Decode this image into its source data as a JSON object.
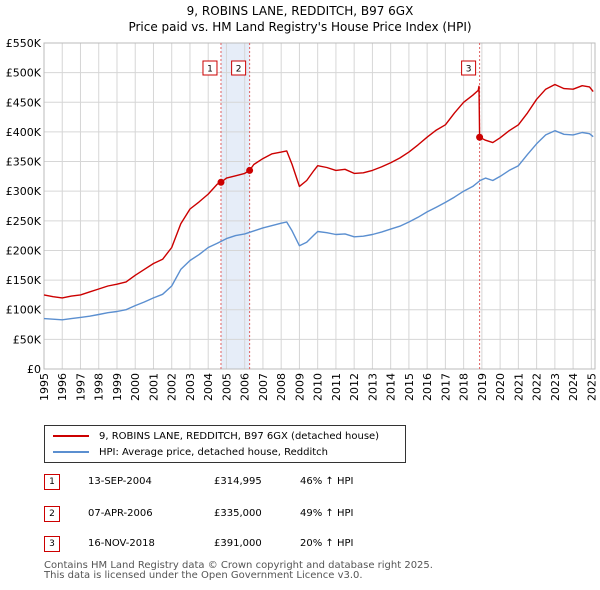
{
  "chart_data": {
    "type": "line",
    "title": "9, ROBINS LANE, REDDITCH, B97 6GX",
    "subtitle": "Price paid vs. HM Land Registry's House Price Index (HPI)",
    "ylim": [
      0,
      550000
    ],
    "xlim": [
      1995,
      2025.2
    ],
    "y_ticks": [
      0,
      50000,
      100000,
      150000,
      200000,
      250000,
      300000,
      350000,
      400000,
      450000,
      500000,
      550000
    ],
    "y_tick_labels": [
      "£0",
      "£50K",
      "£100K",
      "£150K",
      "£200K",
      "£250K",
      "£300K",
      "£350K",
      "£400K",
      "£450K",
      "£500K",
      "£550K"
    ],
    "x_ticks": [
      1995,
      1996,
      1997,
      1998,
      1999,
      2000,
      2001,
      2002,
      2003,
      2004,
      2005,
      2006,
      2007,
      2008,
      2009,
      2010,
      2011,
      2012,
      2013,
      2014,
      2015,
      2016,
      2017,
      2018,
      2019,
      2020,
      2021,
      2022,
      2023,
      2024,
      2025
    ],
    "x_tick_labels": [
      "1995",
      "1996",
      "1997",
      "1998",
      "1999",
      "2000",
      "2001",
      "2002",
      "2003",
      "2004",
      "2005",
      "2006",
      "2007",
      "2008",
      "2009",
      "2010",
      "2011",
      "2012",
      "2013",
      "2014",
      "2015",
      "2016",
      "2017",
      "2018",
      "2019",
      "2020",
      "2021",
      "2022",
      "2023",
      "2024",
      "2025"
    ],
    "series": [
      {
        "name": "9, ROBINS LANE, REDDITCH, B97 6GX (detached house)",
        "color": "#cc0000",
        "points": [
          [
            1995,
            125000
          ],
          [
            1995.5,
            122000
          ],
          [
            1996,
            120000
          ],
          [
            1996.5,
            123000
          ],
          [
            1997,
            125000
          ],
          [
            1997.5,
            130000
          ],
          [
            1998,
            135000
          ],
          [
            1998.5,
            140000
          ],
          [
            1999,
            143000
          ],
          [
            1999.5,
            147000
          ],
          [
            2000,
            158000
          ],
          [
            2000.5,
            168000
          ],
          [
            2001,
            178000
          ],
          [
            2001.5,
            185000
          ],
          [
            2002,
            205000
          ],
          [
            2002.5,
            245000
          ],
          [
            2003,
            270000
          ],
          [
            2003.5,
            282000
          ],
          [
            2004,
            295000
          ],
          [
            2004.5,
            312000
          ],
          [
            2004.7,
            314995
          ],
          [
            2005,
            322000
          ],
          [
            2005.5,
            326000
          ],
          [
            2006,
            330000
          ],
          [
            2006.27,
            335000
          ],
          [
            2006.5,
            345000
          ],
          [
            2007,
            355000
          ],
          [
            2007.5,
            363000
          ],
          [
            2008,
            366000
          ],
          [
            2008.3,
            368000
          ],
          [
            2008.6,
            345000
          ],
          [
            2009,
            308000
          ],
          [
            2009.4,
            318000
          ],
          [
            2009.8,
            335000
          ],
          [
            2010,
            343000
          ],
          [
            2010.5,
            340000
          ],
          [
            2011,
            335000
          ],
          [
            2011.5,
            337000
          ],
          [
            2012,
            330000
          ],
          [
            2012.5,
            331000
          ],
          [
            2013,
            335000
          ],
          [
            2013.5,
            341000
          ],
          [
            2014,
            348000
          ],
          [
            2014.5,
            356000
          ],
          [
            2015,
            366000
          ],
          [
            2015.5,
            378000
          ],
          [
            2016,
            391000
          ],
          [
            2016.5,
            403000
          ],
          [
            2017,
            412000
          ],
          [
            2017.5,
            432000
          ],
          [
            2018,
            450000
          ],
          [
            2018.5,
            462000
          ],
          [
            2018.8,
            470000
          ],
          [
            2018.84,
            477000
          ],
          [
            2018.875,
            391000
          ],
          [
            2019.2,
            386000
          ],
          [
            2019.6,
            382000
          ],
          [
            2020,
            390000
          ],
          [
            2020.5,
            402000
          ],
          [
            2021,
            412000
          ],
          [
            2021.5,
            432000
          ],
          [
            2022,
            455000
          ],
          [
            2022.5,
            472000
          ],
          [
            2023,
            480000
          ],
          [
            2023.5,
            473000
          ],
          [
            2024,
            472000
          ],
          [
            2024.5,
            478000
          ],
          [
            2024.9,
            476000
          ],
          [
            2025.1,
            468000
          ]
        ]
      },
      {
        "name": "HPI: Average price, detached house, Redditch",
        "color": "#5b8fd0",
        "points": [
          [
            1995,
            85000
          ],
          [
            1995.5,
            84000
          ],
          [
            1996,
            83000
          ],
          [
            1996.5,
            85000
          ],
          [
            1997,
            87000
          ],
          [
            1997.5,
            89000
          ],
          [
            1998,
            92000
          ],
          [
            1998.5,
            95000
          ],
          [
            1999,
            97000
          ],
          [
            1999.5,
            100000
          ],
          [
            2000,
            107000
          ],
          [
            2000.5,
            113000
          ],
          [
            2001,
            120000
          ],
          [
            2001.5,
            126000
          ],
          [
            2002,
            140000
          ],
          [
            2002.5,
            168000
          ],
          [
            2003,
            183000
          ],
          [
            2003.5,
            193000
          ],
          [
            2004,
            205000
          ],
          [
            2004.5,
            212000
          ],
          [
            2005,
            220000
          ],
          [
            2005.5,
            225000
          ],
          [
            2006,
            228000
          ],
          [
            2006.5,
            233000
          ],
          [
            2007,
            238000
          ],
          [
            2007.5,
            242000
          ],
          [
            2008,
            246000
          ],
          [
            2008.3,
            248000
          ],
          [
            2008.6,
            233000
          ],
          [
            2009,
            208000
          ],
          [
            2009.4,
            214000
          ],
          [
            2009.8,
            226000
          ],
          [
            2010,
            232000
          ],
          [
            2010.5,
            230000
          ],
          [
            2011,
            227000
          ],
          [
            2011.5,
            228000
          ],
          [
            2012,
            223000
          ],
          [
            2012.5,
            224000
          ],
          [
            2013,
            227000
          ],
          [
            2013.5,
            231000
          ],
          [
            2014,
            236000
          ],
          [
            2014.5,
            241000
          ],
          [
            2015,
            248000
          ],
          [
            2015.5,
            256000
          ],
          [
            2016,
            265000
          ],
          [
            2016.5,
            273000
          ],
          [
            2017,
            281000
          ],
          [
            2017.5,
            290000
          ],
          [
            2018,
            300000
          ],
          [
            2018.5,
            308000
          ],
          [
            2018.9,
            318000
          ],
          [
            2019.2,
            322000
          ],
          [
            2019.6,
            318000
          ],
          [
            2020,
            325000
          ],
          [
            2020.5,
            335000
          ],
          [
            2021,
            343000
          ],
          [
            2021.5,
            362000
          ],
          [
            2022,
            380000
          ],
          [
            2022.5,
            395000
          ],
          [
            2023,
            402000
          ],
          [
            2023.5,
            396000
          ],
          [
            2024,
            395000
          ],
          [
            2024.5,
            399000
          ],
          [
            2024.9,
            397000
          ],
          [
            2025.1,
            392000
          ]
        ]
      }
    ],
    "shaded_ranges": [
      [
        2004.7,
        2006.27
      ]
    ],
    "vlines": [
      2004.7,
      2006.27,
      2018.875
    ],
    "sales": [
      {
        "label": "1",
        "x": 2004.7,
        "price": 314995
      },
      {
        "label": "2",
        "x": 2006.27,
        "price": 335000
      },
      {
        "label": "3",
        "x": 2018.875,
        "price": 391000
      }
    ]
  },
  "legend": {
    "items": [
      {
        "label": "9, ROBINS LANE, REDDITCH, B97 6GX (detached house)",
        "color": "#cc0000"
      },
      {
        "label": "HPI: Average price, detached house, Redditch",
        "color": "#5b8fd0"
      }
    ]
  },
  "sales_table": [
    {
      "num": "1",
      "date": "13-SEP-2004",
      "price": "£314,995",
      "hpi": "46% ↑ HPI"
    },
    {
      "num": "2",
      "date": "07-APR-2006",
      "price": "£335,000",
      "hpi": "49% ↑ HPI"
    },
    {
      "num": "3",
      "date": "16-NOV-2018",
      "price": "£391,000",
      "hpi": "20% ↑ HPI"
    }
  ],
  "footer": {
    "line1": "Contains HM Land Registry data © Crown copyright and database right 2025.",
    "line2": "This data is licensed under the Open Government Licence v3.0."
  }
}
